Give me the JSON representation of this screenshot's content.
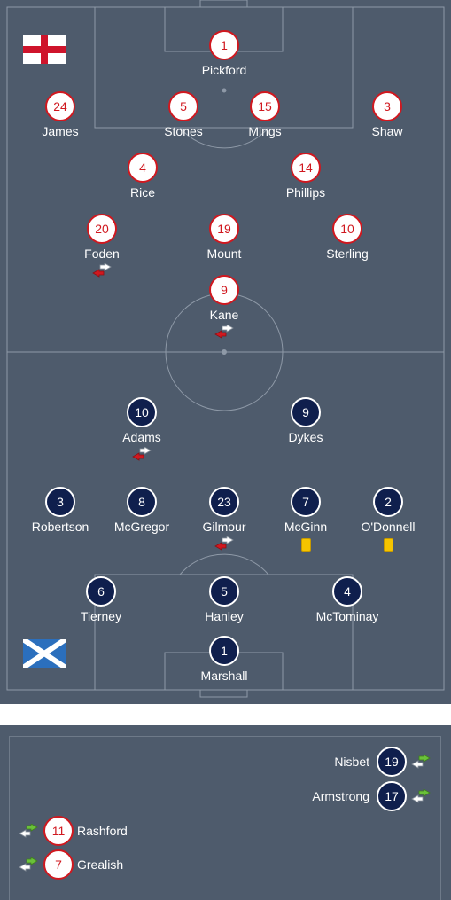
{
  "colors": {
    "pitch": "#4e5b6c",
    "line": "#8e99a7",
    "home_ring": "#d0181f",
    "away_fill": "#0f1f4d",
    "card_yellow": "#f5c400",
    "sub_out_arrow": "#d0181f",
    "sub_in_arrow": "#6ac13a"
  },
  "home": {
    "flag": "england-flag-icon",
    "players": [
      {
        "number": "1",
        "name": "Pickford"
      },
      {
        "number": "24",
        "name": "James"
      },
      {
        "number": "5",
        "name": "Stones"
      },
      {
        "number": "15",
        "name": "Mings"
      },
      {
        "number": "3",
        "name": "Shaw"
      },
      {
        "number": "4",
        "name": "Rice"
      },
      {
        "number": "14",
        "name": "Phillips"
      },
      {
        "number": "20",
        "name": "Foden",
        "subbed_off": true
      },
      {
        "number": "19",
        "name": "Mount"
      },
      {
        "number": "10",
        "name": "Sterling"
      },
      {
        "number": "9",
        "name": "Kane",
        "subbed_off": true
      }
    ]
  },
  "away": {
    "flag": "scotland-flag-icon",
    "players": [
      {
        "number": "10",
        "name": "Adams",
        "subbed_off": true
      },
      {
        "number": "9",
        "name": "Dykes"
      },
      {
        "number": "3",
        "name": "Robertson"
      },
      {
        "number": "8",
        "name": "McGregor"
      },
      {
        "number": "23",
        "name": "Gilmour",
        "subbed_off": true
      },
      {
        "number": "7",
        "name": "McGinn",
        "yellow_card": true
      },
      {
        "number": "2",
        "name": "O'Donnell",
        "yellow_card": true
      },
      {
        "number": "6",
        "name": "Tierney"
      },
      {
        "number": "5",
        "name": "Hanley"
      },
      {
        "number": "4",
        "name": "McTominay"
      },
      {
        "number": "1",
        "name": "Marshall"
      }
    ]
  },
  "substitutes": {
    "away": [
      {
        "number": "19",
        "name": "Nisbet"
      },
      {
        "number": "17",
        "name": "Armstrong"
      }
    ],
    "home": [
      {
        "number": "11",
        "name": "Rashford"
      },
      {
        "number": "7",
        "name": "Grealish"
      }
    ]
  }
}
